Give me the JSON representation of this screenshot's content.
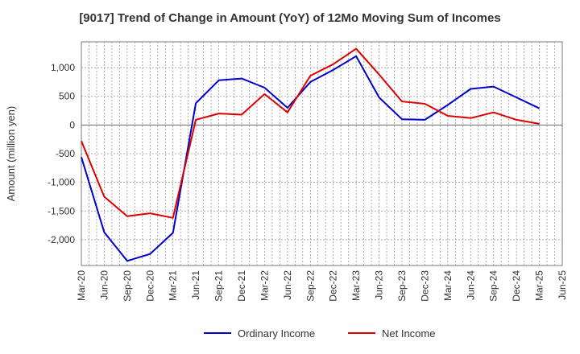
{
  "chart_data": {
    "type": "line",
    "title": "[9017]  Trend of Change in Amount (YoY) of 12Mo Moving Sum of Incomes",
    "xlabel": "",
    "ylabel": "Amount (million yen)",
    "categories": [
      "Mar-20",
      "Jun-20",
      "Sep-20",
      "Dec-20",
      "Mar-21",
      "Jun-21",
      "Sep-21",
      "Dec-21",
      "Mar-22",
      "Jun-22",
      "Sep-22",
      "Dec-22",
      "Mar-23",
      "Jun-23",
      "Sep-23",
      "Dec-23",
      "Mar-24",
      "Jun-24",
      "Sep-24",
      "Dec-24",
      "Mar-25",
      "Jun-25"
    ],
    "ylim": [
      -2450,
      1450
    ],
    "yticks": [
      -2000,
      -1500,
      -1000,
      -500,
      0,
      500,
      1000
    ],
    "ytick_labels": [
      "-2,000",
      "-1,500",
      "-1,000",
      "-500",
      "0",
      "500",
      "1,000"
    ],
    "grid": true,
    "legend_position": "bottom",
    "series": [
      {
        "name": "Ordinary Income",
        "color": "#0000cc",
        "values": [
          -560,
          -1870,
          -2370,
          -2250,
          -1880,
          380,
          780,
          810,
          650,
          300,
          750,
          960,
          1200,
          480,
          100,
          90,
          350,
          630,
          670,
          480,
          290,
          null
        ]
      },
      {
        "name": "Net Income",
        "color": "#dd0000",
        "values": [
          -280,
          -1250,
          -1590,
          -1540,
          -1620,
          90,
          200,
          180,
          540,
          220,
          860,
          1060,
          1330,
          880,
          410,
          370,
          160,
          120,
          220,
          90,
          20,
          null
        ]
      }
    ]
  }
}
